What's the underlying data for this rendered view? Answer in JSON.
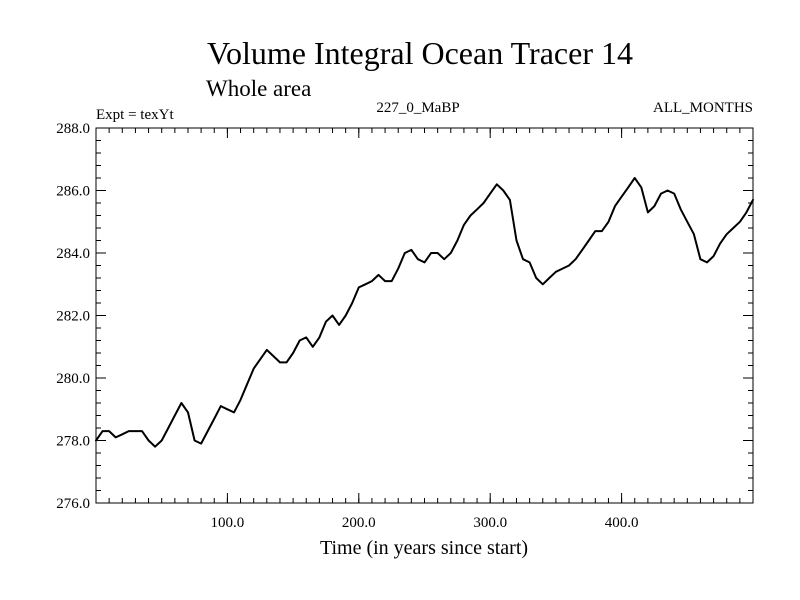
{
  "chart_data": {
    "type": "line",
    "title": "Volume Integral Ocean Tracer 14",
    "subtitle": "Whole area",
    "annotations": {
      "left": "Expt = texYt",
      "center": "227_0_MaBP",
      "right": "ALL_MONTHS"
    },
    "xlabel": "Time (in years since start)",
    "ylabel": "",
    "xlim": [
      0,
      500
    ],
    "ylim": [
      276.0,
      288.0
    ],
    "xticks": [
      100,
      200,
      300,
      400
    ],
    "xtick_labels": [
      "100.0",
      "200.0",
      "300.0",
      "400.0"
    ],
    "yticks": [
      276,
      278,
      280,
      282,
      284,
      286,
      288
    ],
    "ytick_labels": [
      "276.0",
      "278.0",
      "280.0",
      "282.0",
      "284.0",
      "286.0",
      "288.0"
    ],
    "grid": false,
    "line_color": "#000000",
    "series": [
      {
        "x": [
          0,
          5,
          10,
          15,
          20,
          25,
          30,
          35,
          40,
          45,
          50,
          55,
          60,
          65,
          70,
          75,
          80,
          85,
          90,
          95,
          100,
          105,
          110,
          115,
          120,
          125,
          130,
          135,
          140,
          145,
          150,
          155,
          160,
          165,
          170,
          175,
          180,
          185,
          190,
          195,
          200,
          205,
          210,
          215,
          220,
          225,
          230,
          235,
          240,
          245,
          250,
          255,
          260,
          265,
          270,
          275,
          280,
          285,
          290,
          295,
          300,
          305,
          310,
          315,
          320,
          325,
          330,
          335,
          340,
          345,
          350,
          355,
          360,
          365,
          370,
          375,
          380,
          385,
          390,
          395,
          400,
          405,
          410,
          415,
          420,
          425,
          430,
          435,
          440,
          445,
          450,
          455,
          460,
          465,
          470,
          475,
          480,
          485,
          490,
          495,
          500
        ],
        "y": [
          278.0,
          278.3,
          278.3,
          278.1,
          278.2,
          278.3,
          278.3,
          278.3,
          278.0,
          277.8,
          278.0,
          278.4,
          278.8,
          279.2,
          278.9,
          278.0,
          277.9,
          278.3,
          278.7,
          279.1,
          279.0,
          278.9,
          279.3,
          279.8,
          280.3,
          280.6,
          280.9,
          280.7,
          280.5,
          280.5,
          280.8,
          281.2,
          281.3,
          281.0,
          281.3,
          281.8,
          282.0,
          281.7,
          282.0,
          282.4,
          282.9,
          283.0,
          283.1,
          283.3,
          283.1,
          283.1,
          283.5,
          284.0,
          284.1,
          283.8,
          283.7,
          284.0,
          284.0,
          283.8,
          284.0,
          284.4,
          284.9,
          285.2,
          285.4,
          285.6,
          285.9,
          286.2,
          286.0,
          285.7,
          284.4,
          283.8,
          283.7,
          283.2,
          283.0,
          283.2,
          283.4,
          283.5,
          283.6,
          283.8,
          284.1,
          284.4,
          284.7,
          284.7,
          285.0,
          285.5,
          285.8,
          286.1,
          286.4,
          286.1,
          285.3,
          285.5,
          285.9,
          286.0,
          285.9,
          285.4,
          285.0,
          284.6,
          283.8,
          283.7,
          283.9,
          284.3,
          284.6,
          284.8,
          285.0,
          285.3,
          285.7
        ]
      }
    ]
  }
}
